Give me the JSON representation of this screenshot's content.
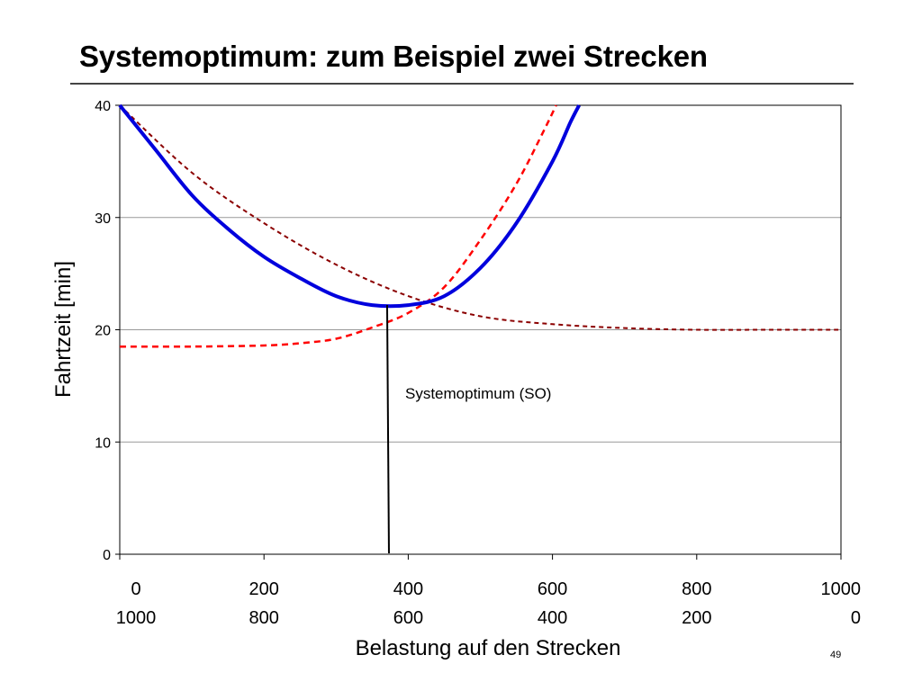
{
  "slide": {
    "title": "Systemoptimum: zum Beispiel zwei Strecken",
    "page_number": "49"
  },
  "chart_data": {
    "type": "line",
    "title": "",
    "ylabel": "Fahrtzeit [min]",
    "xlabel": "Belastung auf den Strecken",
    "ylim": [
      0,
      40
    ],
    "xlim": [
      0,
      1000
    ],
    "grid": true,
    "y_ticks": [
      "0",
      "10",
      "20",
      "30",
      "40"
    ],
    "x_ticks_top": [
      "0",
      "200",
      "400",
      "600",
      "800",
      "1000"
    ],
    "x_ticks_bottom": [
      "1000",
      "800",
      "600",
      "400",
      "200",
      "0"
    ],
    "series": [
      {
        "color": "#ff0000",
        "style": "dashed",
        "points": [
          [
            0,
            18.5
          ],
          [
            100,
            18.5
          ],
          [
            200,
            18.6
          ],
          [
            250,
            18.8
          ],
          [
            300,
            19.2
          ],
          [
            350,
            20.2
          ],
          [
            400,
            21.5
          ],
          [
            450,
            23.8
          ],
          [
            500,
            28.0
          ],
          [
            550,
            33.0
          ],
          [
            590,
            38.0
          ],
          [
            605,
            40.0
          ]
        ]
      },
      {
        "color": "#8b0000",
        "style": "dashed",
        "points": [
          [
            0,
            40.0
          ],
          [
            100,
            34.0
          ],
          [
            200,
            29.5
          ],
          [
            300,
            25.8
          ],
          [
            400,
            23.0
          ],
          [
            500,
            21.2
          ],
          [
            600,
            20.5
          ],
          [
            700,
            20.15
          ],
          [
            800,
            20.0
          ],
          [
            900,
            20.0
          ],
          [
            1000,
            20.0
          ]
        ]
      },
      {
        "color": "#0000dd",
        "style": "solid",
        "points": [
          [
            0,
            40.0
          ],
          [
            50,
            36.0
          ],
          [
            100,
            32.0
          ],
          [
            150,
            29.0
          ],
          [
            200,
            26.5
          ],
          [
            250,
            24.6
          ],
          [
            300,
            23.0
          ],
          [
            350,
            22.2
          ],
          [
            400,
            22.2
          ],
          [
            450,
            23.0
          ],
          [
            500,
            25.5
          ],
          [
            550,
            29.5
          ],
          [
            600,
            35.0
          ],
          [
            625,
            38.5
          ],
          [
            637,
            40.0
          ]
        ]
      }
    ],
    "annotation": {
      "label": "Systemoptimum (SO)",
      "x": 372
    }
  }
}
